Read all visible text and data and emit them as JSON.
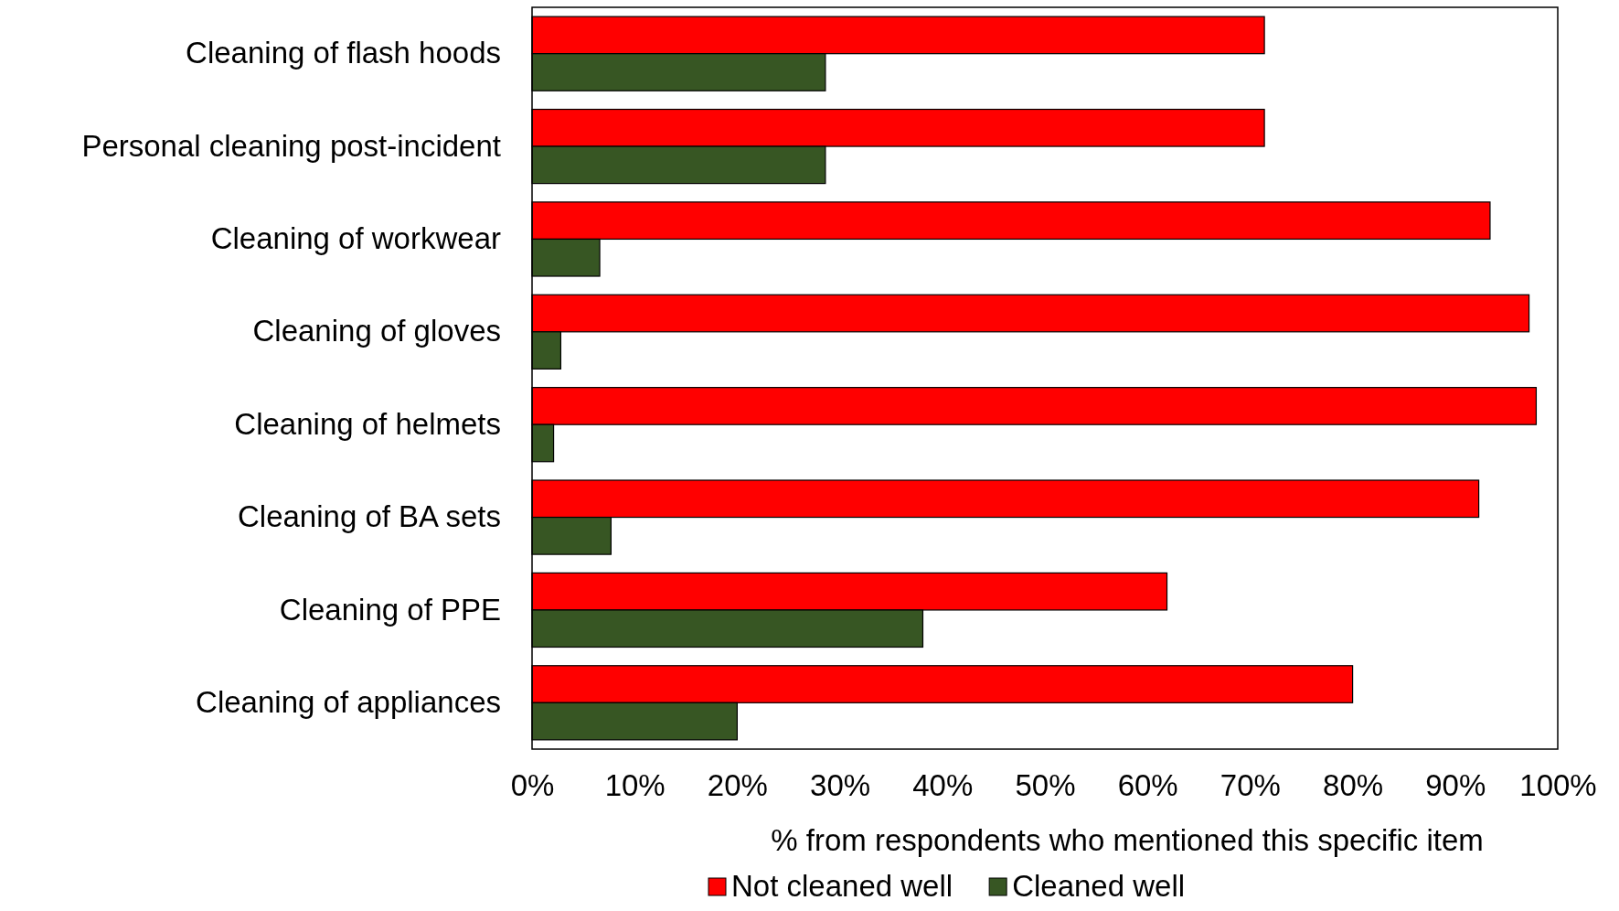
{
  "chart_data": {
    "type": "bar",
    "orientation": "horizontal",
    "xlabel": "% from respondents who mentioned this specific item",
    "categories": [
      "Cleaning of flash hoods",
      "Personal cleaning post-incident",
      "Cleaning of workwear",
      "Cleaning of gloves",
      "Cleaning of helmets",
      "Cleaning of BA sets",
      "Cleaning of PPE",
      "Cleaning of appliances"
    ],
    "series": [
      {
        "name": "Not cleaned well",
        "color": "#ff0000",
        "values": [
          71.4,
          71.4,
          93.4,
          97.2,
          97.9,
          92.3,
          61.9,
          80
        ]
      },
      {
        "name": "Cleaned well",
        "color": "#375623",
        "values": [
          28.6,
          28.6,
          6.6,
          2.8,
          2.1,
          7.7,
          38.1,
          20
        ]
      }
    ],
    "xlim": [
      0,
      100
    ],
    "xticks": [
      {
        "value": 0,
        "label": "0%"
      },
      {
        "value": 10,
        "label": "10%"
      },
      {
        "value": 20,
        "label": "20%"
      },
      {
        "value": 30,
        "label": "30%"
      },
      {
        "value": 40,
        "label": "40%"
      },
      {
        "value": 50,
        "label": "50%"
      },
      {
        "value": 60,
        "label": "60%"
      },
      {
        "value": 70,
        "label": "70%"
      },
      {
        "value": 80,
        "label": "80%"
      },
      {
        "value": 90,
        "label": "90%"
      },
      {
        "value": 100,
        "label": "100%"
      }
    ],
    "legend": "bottom",
    "grid": false
  }
}
